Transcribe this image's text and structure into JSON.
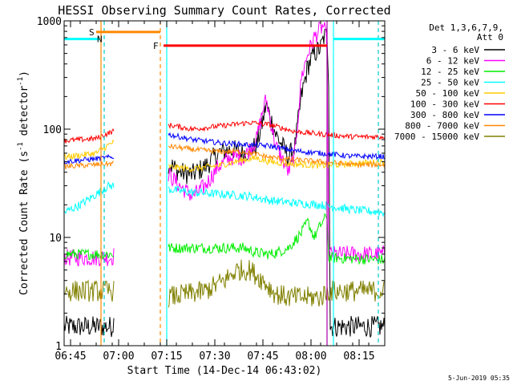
{
  "chart_data": {
    "type": "line",
    "title": "HESSI Observing Summary Count Rates, Corrected",
    "xlabel": "Start Time (14-Dec-14 06:43:02)",
    "ylabel_main": "Corrected Count Rate (s",
    "ylabel_sup1": "-1",
    "ylabel_mid": " detector",
    "ylabel_sup2": "-1",
    "ylabel_end": ")",
    "yscale": "log",
    "ylim": [
      1,
      1000
    ],
    "xlim_minutes": [
      0,
      100
    ],
    "x_ticks": [
      {
        "label": "06:45",
        "minute": 2
      },
      {
        "label": "07:00",
        "minute": 17
      },
      {
        "label": "07:15",
        "minute": 32
      },
      {
        "label": "07:30",
        "minute": 47
      },
      {
        "label": "07:45",
        "minute": 62
      },
      {
        "label": "08:00",
        "minute": 77
      },
      {
        "label": "08:15",
        "minute": 92
      }
    ],
    "y_ticks": [
      {
        "label": "1",
        "value": 1
      },
      {
        "label": "10",
        "value": 10
      },
      {
        "label": "100",
        "value": 100
      },
      {
        "label": "1000",
        "value": 1000
      }
    ],
    "legend_header": [
      "Det 1,3,6,7,9,",
      "Att 0"
    ],
    "legend_position": "top-right",
    "data_gap_minutes": [
      15.5,
      32.5
    ],
    "series": [
      {
        "name": "3 - 6 keV",
        "color": "#000000",
        "noise": 0.1,
        "points": [
          [
            0,
            1.5
          ],
          [
            15,
            1.5
          ],
          [
            32,
            50
          ],
          [
            36,
            40
          ],
          [
            40,
            38
          ],
          [
            44,
            45
          ],
          [
            48,
            60
          ],
          [
            52,
            65
          ],
          [
            56,
            60
          ],
          [
            60,
            70
          ],
          [
            62,
            120
          ],
          [
            63,
            170
          ],
          [
            66,
            90
          ],
          [
            70,
            55
          ],
          [
            72,
            70
          ],
          [
            74,
            200
          ],
          [
            76,
            380
          ],
          [
            78,
            500
          ],
          [
            80,
            560
          ],
          [
            81,
            700
          ],
          [
            82,
            750
          ],
          [
            82.5,
            300
          ],
          [
            83,
            1.5
          ],
          [
            100,
            1.5
          ]
        ]
      },
      {
        "name": "6 - 12 keV",
        "color": "#ff00ff",
        "noise": 0.08,
        "points": [
          [
            0,
            6.5
          ],
          [
            15,
            6.5
          ],
          [
            32,
            40
          ],
          [
            36,
            30
          ],
          [
            40,
            24
          ],
          [
            44,
            30
          ],
          [
            48,
            45
          ],
          [
            52,
            55
          ],
          [
            56,
            55
          ],
          [
            60,
            80
          ],
          [
            62,
            150
          ],
          [
            63,
            190
          ],
          [
            66,
            70
          ],
          [
            70,
            40
          ],
          [
            72,
            60
          ],
          [
            74,
            300
          ],
          [
            76,
            500
          ],
          [
            78,
            700
          ],
          [
            80,
            850
          ],
          [
            81,
            900
          ],
          [
            82,
            600
          ],
          [
            82.5,
            7
          ],
          [
            100,
            7
          ]
        ]
      },
      {
        "name": "12 - 25 keV",
        "color": "#00ee00",
        "noise": 0.05,
        "points": [
          [
            0,
            7
          ],
          [
            15,
            7
          ],
          [
            32,
            8
          ],
          [
            40,
            8
          ],
          [
            48,
            8
          ],
          [
            56,
            8
          ],
          [
            60,
            7.2
          ],
          [
            64,
            7
          ],
          [
            66,
            7.2
          ],
          [
            70,
            8
          ],
          [
            74,
            11
          ],
          [
            76,
            14
          ],
          [
            78,
            10
          ],
          [
            80,
            13
          ],
          [
            82,
            16
          ],
          [
            82.5,
            6.5
          ],
          [
            100,
            6.2
          ]
        ]
      },
      {
        "name": "25 - 50 keV",
        "color": "#00ffff",
        "noise": 0.04,
        "points": [
          [
            0,
            17
          ],
          [
            5,
            20
          ],
          [
            10,
            25
          ],
          [
            14,
            30
          ],
          [
            15,
            30
          ],
          [
            32,
            28
          ],
          [
            40,
            26
          ],
          [
            50,
            25
          ],
          [
            58,
            24
          ],
          [
            64,
            22
          ],
          [
            70,
            21
          ],
          [
            80,
            20
          ],
          [
            90,
            18
          ],
          [
            100,
            17
          ]
        ]
      },
      {
        "name": "50 - 100 keV",
        "color": "#ffcc00",
        "noise": 0.03,
        "points": [
          [
            0,
            55
          ],
          [
            10,
            60
          ],
          [
            15,
            75
          ],
          [
            32,
            45
          ],
          [
            40,
            43
          ],
          [
            48,
            46
          ],
          [
            56,
            52
          ],
          [
            60,
            54
          ],
          [
            64,
            50
          ],
          [
            70,
            48
          ],
          [
            80,
            46
          ],
          [
            90,
            48
          ],
          [
            100,
            50
          ]
        ]
      },
      {
        "name": "100 - 300 keV",
        "color": "#ff0000",
        "noise": 0.025,
        "points": [
          [
            0,
            78
          ],
          [
            10,
            82
          ],
          [
            15,
            95
          ],
          [
            32,
            110
          ],
          [
            40,
            100
          ],
          [
            50,
            108
          ],
          [
            58,
            115
          ],
          [
            64,
            110
          ],
          [
            72,
            95
          ],
          [
            80,
            90
          ],
          [
            90,
            85
          ],
          [
            100,
            85
          ]
        ]
      },
      {
        "name": "300 - 800 keV",
        "color": "#0000ff",
        "noise": 0.025,
        "points": [
          [
            0,
            50
          ],
          [
            15,
            55
          ],
          [
            32,
            90
          ],
          [
            40,
            80
          ],
          [
            48,
            75
          ],
          [
            56,
            72
          ],
          [
            64,
            70
          ],
          [
            72,
            63
          ],
          [
            80,
            60
          ],
          [
            90,
            56
          ],
          [
            100,
            56
          ]
        ]
      },
      {
        "name": "800 - 7000 keV",
        "color": "#ff8800",
        "noise": 0.025,
        "points": [
          [
            0,
            45
          ],
          [
            15,
            48
          ],
          [
            32,
            70
          ],
          [
            40,
            65
          ],
          [
            48,
            62
          ],
          [
            56,
            62
          ],
          [
            64,
            55
          ],
          [
            72,
            52
          ],
          [
            80,
            50
          ],
          [
            90,
            47
          ],
          [
            100,
            47
          ]
        ]
      },
      {
        "name": "7000 - 15000 keV",
        "color": "#808000",
        "noise": 0.1,
        "points": [
          [
            0,
            3.2
          ],
          [
            15,
            3.2
          ],
          [
            32,
            2.8
          ],
          [
            44,
            3.2
          ],
          [
            50,
            4
          ],
          [
            54,
            5
          ],
          [
            58,
            5
          ],
          [
            62,
            4
          ],
          [
            66,
            3
          ],
          [
            70,
            2.8
          ],
          [
            80,
            2.8
          ],
          [
            82.5,
            3.2
          ],
          [
            100,
            3.2
          ]
        ]
      }
    ],
    "markers": [
      {
        "label": "S",
        "color": "#ff8800",
        "minute": 10
      },
      {
        "label": "N",
        "color": "#00cccc",
        "minute": 12.5
      },
      {
        "label": "F",
        "color": "#ff0000",
        "minute": 30
      }
    ],
    "attenuator_bars": [
      {
        "color": "#00ffff",
        "from": 0,
        "to": 11,
        "value": 680
      },
      {
        "color": "#ff8800",
        "from": 10,
        "to": 30,
        "value": 790
      },
      {
        "color": "#ff0000",
        "from": 31,
        "to": 82,
        "value": 590
      },
      {
        "color": "#00ffff",
        "from": 84,
        "to": 100,
        "value": 680
      }
    ],
    "verticals": [
      {
        "minute": 11.5,
        "color": "#ff8800",
        "dash": false
      },
      {
        "minute": 12.5,
        "color": "#00cccc",
        "dash": true
      },
      {
        "minute": 30,
        "color": "#ff8800",
        "dash": true
      },
      {
        "minute": 32,
        "color": "#00ffff",
        "dash": false
      },
      {
        "minute": 84,
        "color": "#00ffff",
        "dash": false
      },
      {
        "minute": 82,
        "color": "#aa00aa",
        "dash": false
      },
      {
        "minute": 98,
        "color": "#00cccc",
        "dash": true
      }
    ],
    "footer_date": "5-Jun-2019 05:35"
  }
}
